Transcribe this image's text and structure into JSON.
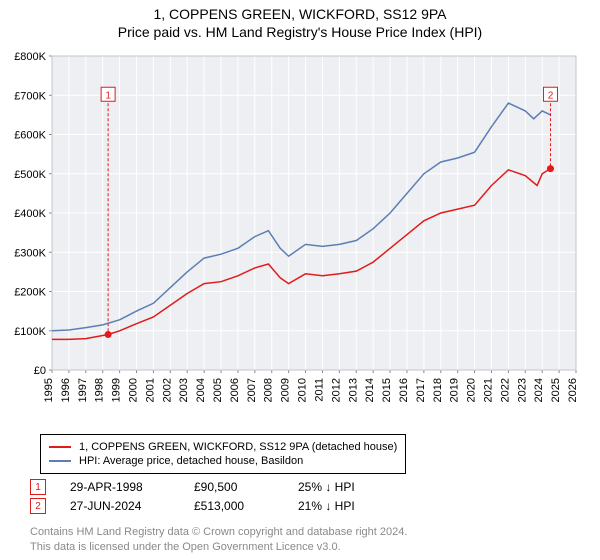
{
  "title": "1, COPPENS GREEN, WICKFORD, SS12 9PA",
  "subtitle": "Price paid vs. HM Land Registry's House Price Index (HPI)",
  "chart": {
    "type": "line",
    "background_color": "#eeeff2",
    "plot_border_color": "#c0c4cc",
    "grid_color": "#ffffff",
    "axis_font_size": 11,
    "axis_font_color": "#000000",
    "x_years": [
      1995,
      1996,
      1997,
      1998,
      1999,
      2000,
      2001,
      2002,
      2003,
      2004,
      2005,
      2006,
      2007,
      2008,
      2009,
      2010,
      2011,
      2012,
      2013,
      2014,
      2015,
      2016,
      2017,
      2018,
      2019,
      2020,
      2021,
      2022,
      2023,
      2024,
      2025,
      2026
    ],
    "y_ticks": [
      0,
      100000,
      200000,
      300000,
      400000,
      500000,
      600000,
      700000,
      800000
    ],
    "y_tick_labels": [
      "£0",
      "£100K",
      "£200K",
      "£300K",
      "£400K",
      "£500K",
      "£600K",
      "£700K",
      "£800K"
    ],
    "ylim": [
      0,
      800000
    ],
    "xlim": [
      1995,
      2026
    ],
    "series": [
      {
        "name": "1, COPPENS GREEN, WICKFORD, SS12 9PA (detached house)",
        "color": "#e11b1b",
        "line_width": 1.5,
        "points": [
          [
            1995,
            78000
          ],
          [
            1996,
            78000
          ],
          [
            1997,
            80000
          ],
          [
            1998.32,
            90500
          ],
          [
            1999,
            100000
          ],
          [
            2000,
            118000
          ],
          [
            2001,
            135000
          ],
          [
            2002,
            165000
          ],
          [
            2003,
            195000
          ],
          [
            2004,
            220000
          ],
          [
            2005,
            225000
          ],
          [
            2006,
            240000
          ],
          [
            2007,
            260000
          ],
          [
            2007.8,
            270000
          ],
          [
            2008.5,
            235000
          ],
          [
            2009,
            220000
          ],
          [
            2010,
            245000
          ],
          [
            2011,
            240000
          ],
          [
            2012,
            245000
          ],
          [
            2013,
            252000
          ],
          [
            2014,
            275000
          ],
          [
            2015,
            310000
          ],
          [
            2016,
            345000
          ],
          [
            2017,
            380000
          ],
          [
            2018,
            400000
          ],
          [
            2019,
            410000
          ],
          [
            2020,
            420000
          ],
          [
            2021,
            470000
          ],
          [
            2022,
            510000
          ],
          [
            2023,
            495000
          ],
          [
            2023.7,
            470000
          ],
          [
            2024.0,
            500000
          ],
          [
            2024.49,
            513000
          ]
        ]
      },
      {
        "name": "HPI: Average price, detached house, Basildon",
        "color": "#5b7fb4",
        "line_width": 1.5,
        "points": [
          [
            1995,
            100000
          ],
          [
            1996,
            102000
          ],
          [
            1997,
            108000
          ],
          [
            1998,
            115000
          ],
          [
            1999,
            128000
          ],
          [
            2000,
            150000
          ],
          [
            2001,
            170000
          ],
          [
            2002,
            210000
          ],
          [
            2003,
            250000
          ],
          [
            2004,
            285000
          ],
          [
            2005,
            295000
          ],
          [
            2006,
            310000
          ],
          [
            2007,
            340000
          ],
          [
            2007.8,
            355000
          ],
          [
            2008.5,
            310000
          ],
          [
            2009,
            290000
          ],
          [
            2010,
            320000
          ],
          [
            2011,
            315000
          ],
          [
            2012,
            320000
          ],
          [
            2013,
            330000
          ],
          [
            2014,
            360000
          ],
          [
            2015,
            400000
          ],
          [
            2016,
            450000
          ],
          [
            2017,
            500000
          ],
          [
            2018,
            530000
          ],
          [
            2019,
            540000
          ],
          [
            2020,
            555000
          ],
          [
            2021,
            620000
          ],
          [
            2022,
            680000
          ],
          [
            2023,
            660000
          ],
          [
            2023.5,
            640000
          ],
          [
            2024,
            660000
          ],
          [
            2024.5,
            650000
          ]
        ]
      }
    ],
    "markers": [
      {
        "n": "1",
        "x": 1998.32,
        "y": 90500,
        "color": "#e11b1b"
      },
      {
        "n": "2",
        "x": 2024.49,
        "y": 513000,
        "color": "#e11b1b"
      }
    ],
    "marker_label_y_top": 700000
  },
  "legend": {
    "border_color": "#000000",
    "font_size": 11,
    "items": [
      {
        "color": "#e11b1b",
        "label": "1, COPPENS GREEN, WICKFORD, SS12 9PA (detached house)"
      },
      {
        "color": "#5b7fb4",
        "label": "HPI: Average price, detached house, Basildon"
      }
    ]
  },
  "marker_table": {
    "rows": [
      {
        "n": "1",
        "color": "#e11b1b",
        "date": "29-APR-1998",
        "price": "£90,500",
        "pct": "25% ↓ HPI"
      },
      {
        "n": "2",
        "color": "#e11b1b",
        "date": "27-JUN-2024",
        "price": "£513,000",
        "pct": "21% ↓ HPI"
      }
    ]
  },
  "footnote_line1": "Contains HM Land Registry data © Crown copyright and database right 2024.",
  "footnote_line2": "This data is licensed under the Open Government Licence v3.0."
}
